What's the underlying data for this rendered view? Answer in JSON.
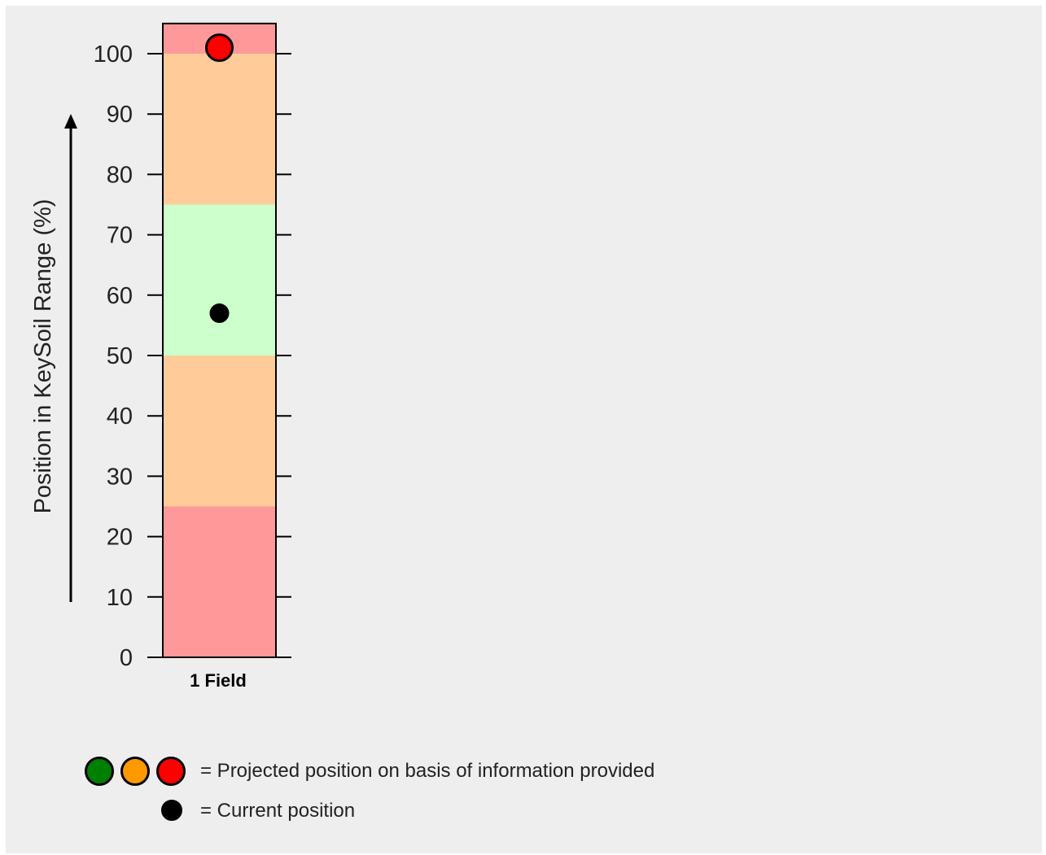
{
  "chart_data": {
    "type": "range-bar",
    "ylabel": "Position in KeySoil Range (%)",
    "ylim": [
      0,
      105
    ],
    "yticks": [
      0,
      10,
      20,
      30,
      40,
      50,
      60,
      70,
      80,
      90,
      100
    ],
    "categories": [
      "1 Field"
    ],
    "bands": [
      {
        "from": 0,
        "to": 25,
        "color": "#ff9999"
      },
      {
        "from": 25,
        "to": 50,
        "color": "#ffcc99"
      },
      {
        "from": 50,
        "to": 75,
        "color": "#ccffcc"
      },
      {
        "from": 75,
        "to": 100,
        "color": "#ffcc99"
      },
      {
        "from": 100,
        "to": 105,
        "color": "#ff9999"
      }
    ],
    "points": [
      {
        "category": "1 Field",
        "kind": "projected",
        "value": 101,
        "color": "#ff0000"
      },
      {
        "category": "1 Field",
        "kind": "current",
        "value": 57,
        "color": "#000000"
      }
    ]
  },
  "legend": {
    "projected_colors": [
      "#008000",
      "#ff9900",
      "#ff0000"
    ],
    "projected_label": "= Projected position on basis of information provided",
    "current_color": "#000000",
    "current_label": "= Current position"
  }
}
